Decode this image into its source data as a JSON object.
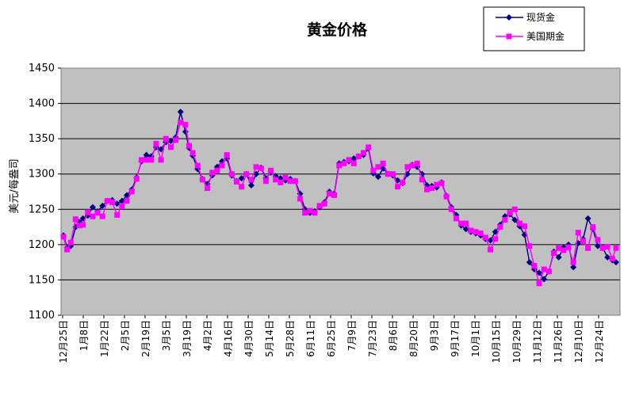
{
  "chart_data": {
    "type": "line",
    "title": "黄金价格",
    "xlabel": "",
    "ylabel": "美元/每盎司",
    "ylim": [
      1100,
      1450
    ],
    "yticks": [
      1100,
      1150,
      1200,
      1250,
      1300,
      1350,
      1400,
      1450
    ],
    "grid": true,
    "legend_position": "top-right",
    "plot_background": "#c0c0c0",
    "categories": [
      "12月25日",
      "1月8日",
      "1月22日",
      "2月5日",
      "2月19日",
      "3月5日",
      "3月19日",
      "4月2日",
      "4月16日",
      "4月30日",
      "5月14日",
      "5月28日",
      "6月11日",
      "6月25日",
      "7月9日",
      "7月23日",
      "8月6日",
      "8月20日",
      "9月3日",
      "9月17日",
      "10月1日",
      "10月15日",
      "10月29日",
      "11月12日",
      "11月26日",
      "12月10日",
      "12月24日"
    ],
    "series": [
      {
        "name": "现货金",
        "color": "#000080",
        "marker": "diamond",
        "values": [
          [
            0,
            1213
          ],
          [
            0.3,
            1196
          ],
          [
            0.6,
            1198
          ],
          [
            1,
            1225
          ],
          [
            1.3,
            1232
          ],
          [
            1.6,
            1237
          ],
          [
            2,
            1241
          ],
          [
            2.4,
            1253
          ],
          [
            2.8,
            1247
          ],
          [
            3.2,
            1255
          ],
          [
            3.6,
            1262
          ],
          [
            4,
            1263
          ],
          [
            4.4,
            1258
          ],
          [
            4.8,
            1262
          ],
          [
            5.2,
            1270
          ],
          [
            5.6,
            1278
          ],
          [
            6,
            1295
          ],
          [
            6.4,
            1318
          ],
          [
            6.8,
            1327
          ],
          [
            7.2,
            1325
          ],
          [
            7.6,
            1338
          ],
          [
            8,
            1335
          ],
          [
            8.4,
            1345
          ],
          [
            8.8,
            1347
          ],
          [
            9.2,
            1352
          ],
          [
            9.6,
            1388
          ],
          [
            10,
            1360
          ],
          [
            10.3,
            1337
          ],
          [
            10.6,
            1326
          ],
          [
            11,
            1307
          ],
          [
            11.4,
            1293
          ],
          [
            11.8,
            1286
          ],
          [
            12.2,
            1298
          ],
          [
            12.6,
            1310
          ],
          [
            13,
            1318
          ],
          [
            13.4,
            1322
          ],
          [
            13.8,
            1298
          ],
          [
            14.2,
            1290
          ],
          [
            14.6,
            1294
          ],
          [
            15,
            1300
          ],
          [
            15.4,
            1284
          ],
          [
            15.8,
            1300
          ],
          [
            16.2,
            1309
          ],
          [
            16.6,
            1294
          ],
          [
            17,
            1302
          ],
          [
            17.4,
            1297
          ],
          [
            17.8,
            1294
          ],
          [
            18.2,
            1291
          ],
          [
            18.6,
            1293
          ],
          [
            19,
            1290
          ],
          [
            19.4,
            1272
          ],
          [
            19.8,
            1250
          ],
          [
            20.2,
            1245
          ],
          [
            20.6,
            1247
          ],
          [
            21,
            1253
          ],
          [
            21.4,
            1260
          ],
          [
            21.8,
            1275
          ],
          [
            22.2,
            1272
          ],
          [
            22.6,
            1315
          ],
          [
            23,
            1317
          ],
          [
            23.4,
            1318
          ],
          [
            23.8,
            1322
          ],
          [
            24.2,
            1325
          ],
          [
            24.6,
            1327
          ],
          [
            25,
            1336
          ],
          [
            25.4,
            1301
          ],
          [
            25.8,
            1296
          ],
          [
            26.2,
            1308
          ],
          [
            26.6,
            1300
          ],
          [
            27,
            1298
          ],
          [
            27.4,
            1291
          ],
          [
            27.8,
            1287
          ],
          [
            28.2,
            1300
          ],
          [
            28.6,
            1313
          ],
          [
            29,
            1310
          ],
          [
            29.4,
            1300
          ],
          [
            29.8,
            1284
          ],
          [
            30.2,
            1283
          ],
          [
            30.6,
            1281
          ],
          [
            31,
            1288
          ],
          [
            31.4,
            1269
          ],
          [
            31.8,
            1253
          ],
          [
            32.2,
            1242
          ],
          [
            32.6,
            1227
          ],
          [
            33,
            1222
          ],
          [
            33.4,
            1218
          ],
          [
            33.8,
            1216
          ],
          [
            34.2,
            1213
          ],
          [
            34.6,
            1208
          ],
          [
            35,
            1206
          ],
          [
            35.4,
            1218
          ],
          [
            35.8,
            1228
          ],
          [
            36.2,
            1240
          ],
          [
            36.6,
            1243
          ],
          [
            37,
            1235
          ],
          [
            37.4,
            1226
          ],
          [
            37.8,
            1214
          ],
          [
            38.2,
            1175
          ],
          [
            38.6,
            1165
          ],
          [
            39,
            1160
          ],
          [
            39.4,
            1151
          ],
          [
            39.8,
            1162
          ],
          [
            40.2,
            1190
          ],
          [
            40.6,
            1182
          ],
          [
            41,
            1196
          ],
          [
            41.4,
            1200
          ],
          [
            41.8,
            1168
          ],
          [
            42.2,
            1202
          ],
          [
            42.6,
            1208
          ],
          [
            43,
            1237
          ],
          [
            43.4,
            1222
          ],
          [
            43.8,
            1198
          ],
          [
            44.2,
            1196
          ],
          [
            44.6,
            1182
          ],
          [
            45,
            1178
          ],
          [
            45.3,
            1175
          ]
        ]
      },
      {
        "name": "美国期金",
        "color": "#ff00ff",
        "marker": "square",
        "values": [
          [
            0,
            1211
          ],
          [
            0.3,
            1193
          ],
          [
            0.6,
            1203
          ],
          [
            1,
            1236
          ],
          [
            1.3,
            1227
          ],
          [
            1.6,
            1228
          ],
          [
            2,
            1246
          ],
          [
            2.4,
            1240
          ],
          [
            2.8,
            1245
          ],
          [
            3.2,
            1240
          ],
          [
            3.6,
            1262
          ],
          [
            4,
            1260
          ],
          [
            4.4,
            1242
          ],
          [
            4.8,
            1255
          ],
          [
            5.2,
            1262
          ],
          [
            5.6,
            1275
          ],
          [
            6,
            1293
          ],
          [
            6.4,
            1320
          ],
          [
            6.8,
            1320
          ],
          [
            7.2,
            1320
          ],
          [
            7.6,
            1343
          ],
          [
            8,
            1320
          ],
          [
            8.4,
            1350
          ],
          [
            8.8,
            1338
          ],
          [
            9.2,
            1348
          ],
          [
            9.6,
            1373
          ],
          [
            10,
            1370
          ],
          [
            10.3,
            1340
          ],
          [
            10.6,
            1330
          ],
          [
            11,
            1312
          ],
          [
            11.4,
            1292
          ],
          [
            11.8,
            1280
          ],
          [
            12.2,
            1302
          ],
          [
            12.6,
            1305
          ],
          [
            13,
            1312
          ],
          [
            13.4,
            1327
          ],
          [
            13.8,
            1300
          ],
          [
            14.2,
            1289
          ],
          [
            14.6,
            1282
          ],
          [
            15,
            1300
          ],
          [
            15.4,
            1292
          ],
          [
            15.8,
            1310
          ],
          [
            16.2,
            1308
          ],
          [
            16.6,
            1290
          ],
          [
            17,
            1305
          ],
          [
            17.4,
            1292
          ],
          [
            17.8,
            1288
          ],
          [
            18.2,
            1295
          ],
          [
            18.6,
            1290
          ],
          [
            19,
            1290
          ],
          [
            19.4,
            1265
          ],
          [
            19.8,
            1245
          ],
          [
            20.2,
            1248
          ],
          [
            20.6,
            1245
          ],
          [
            21,
            1255
          ],
          [
            21.4,
            1258
          ],
          [
            21.8,
            1272
          ],
          [
            22.2,
            1270
          ],
          [
            22.6,
            1312
          ],
          [
            23,
            1315
          ],
          [
            23.4,
            1320
          ],
          [
            23.8,
            1315
          ],
          [
            24.2,
            1325
          ],
          [
            24.6,
            1330
          ],
          [
            25,
            1338
          ],
          [
            25.4,
            1305
          ],
          [
            25.8,
            1310
          ],
          [
            26.2,
            1315
          ],
          [
            26.6,
            1300
          ],
          [
            27,
            1300
          ],
          [
            27.4,
            1282
          ],
          [
            27.8,
            1288
          ],
          [
            28.2,
            1310
          ],
          [
            28.6,
            1312
          ],
          [
            29,
            1315
          ],
          [
            29.4,
            1292
          ],
          [
            29.8,
            1278
          ],
          [
            30.2,
            1280
          ],
          [
            30.6,
            1285
          ],
          [
            31,
            1287
          ],
          [
            31.4,
            1268
          ],
          [
            31.8,
            1250
          ],
          [
            32.2,
            1237
          ],
          [
            32.6,
            1230
          ],
          [
            33,
            1230
          ],
          [
            33.4,
            1220
          ],
          [
            33.8,
            1218
          ],
          [
            34.2,
            1216
          ],
          [
            34.6,
            1210
          ],
          [
            35,
            1193
          ],
          [
            35.4,
            1208
          ],
          [
            35.8,
            1225
          ],
          [
            36.2,
            1235
          ],
          [
            36.6,
            1245
          ],
          [
            37,
            1250
          ],
          [
            37.4,
            1230
          ],
          [
            37.8,
            1226
          ],
          [
            38.2,
            1198
          ],
          [
            38.6,
            1170
          ],
          [
            39,
            1145
          ],
          [
            39.4,
            1165
          ],
          [
            39.8,
            1162
          ],
          [
            40.2,
            1188
          ],
          [
            40.6,
            1195
          ],
          [
            41,
            1192
          ],
          [
            41.4,
            1196
          ],
          [
            41.8,
            1175
          ],
          [
            42.2,
            1217
          ],
          [
            42.6,
            1205
          ],
          [
            43,
            1195
          ],
          [
            43.4,
            1225
          ],
          [
            43.8,
            1207
          ],
          [
            44.2,
            1195
          ],
          [
            44.6,
            1197
          ],
          [
            45,
            1180
          ],
          [
            45.3,
            1195
          ]
        ]
      }
    ]
  }
}
